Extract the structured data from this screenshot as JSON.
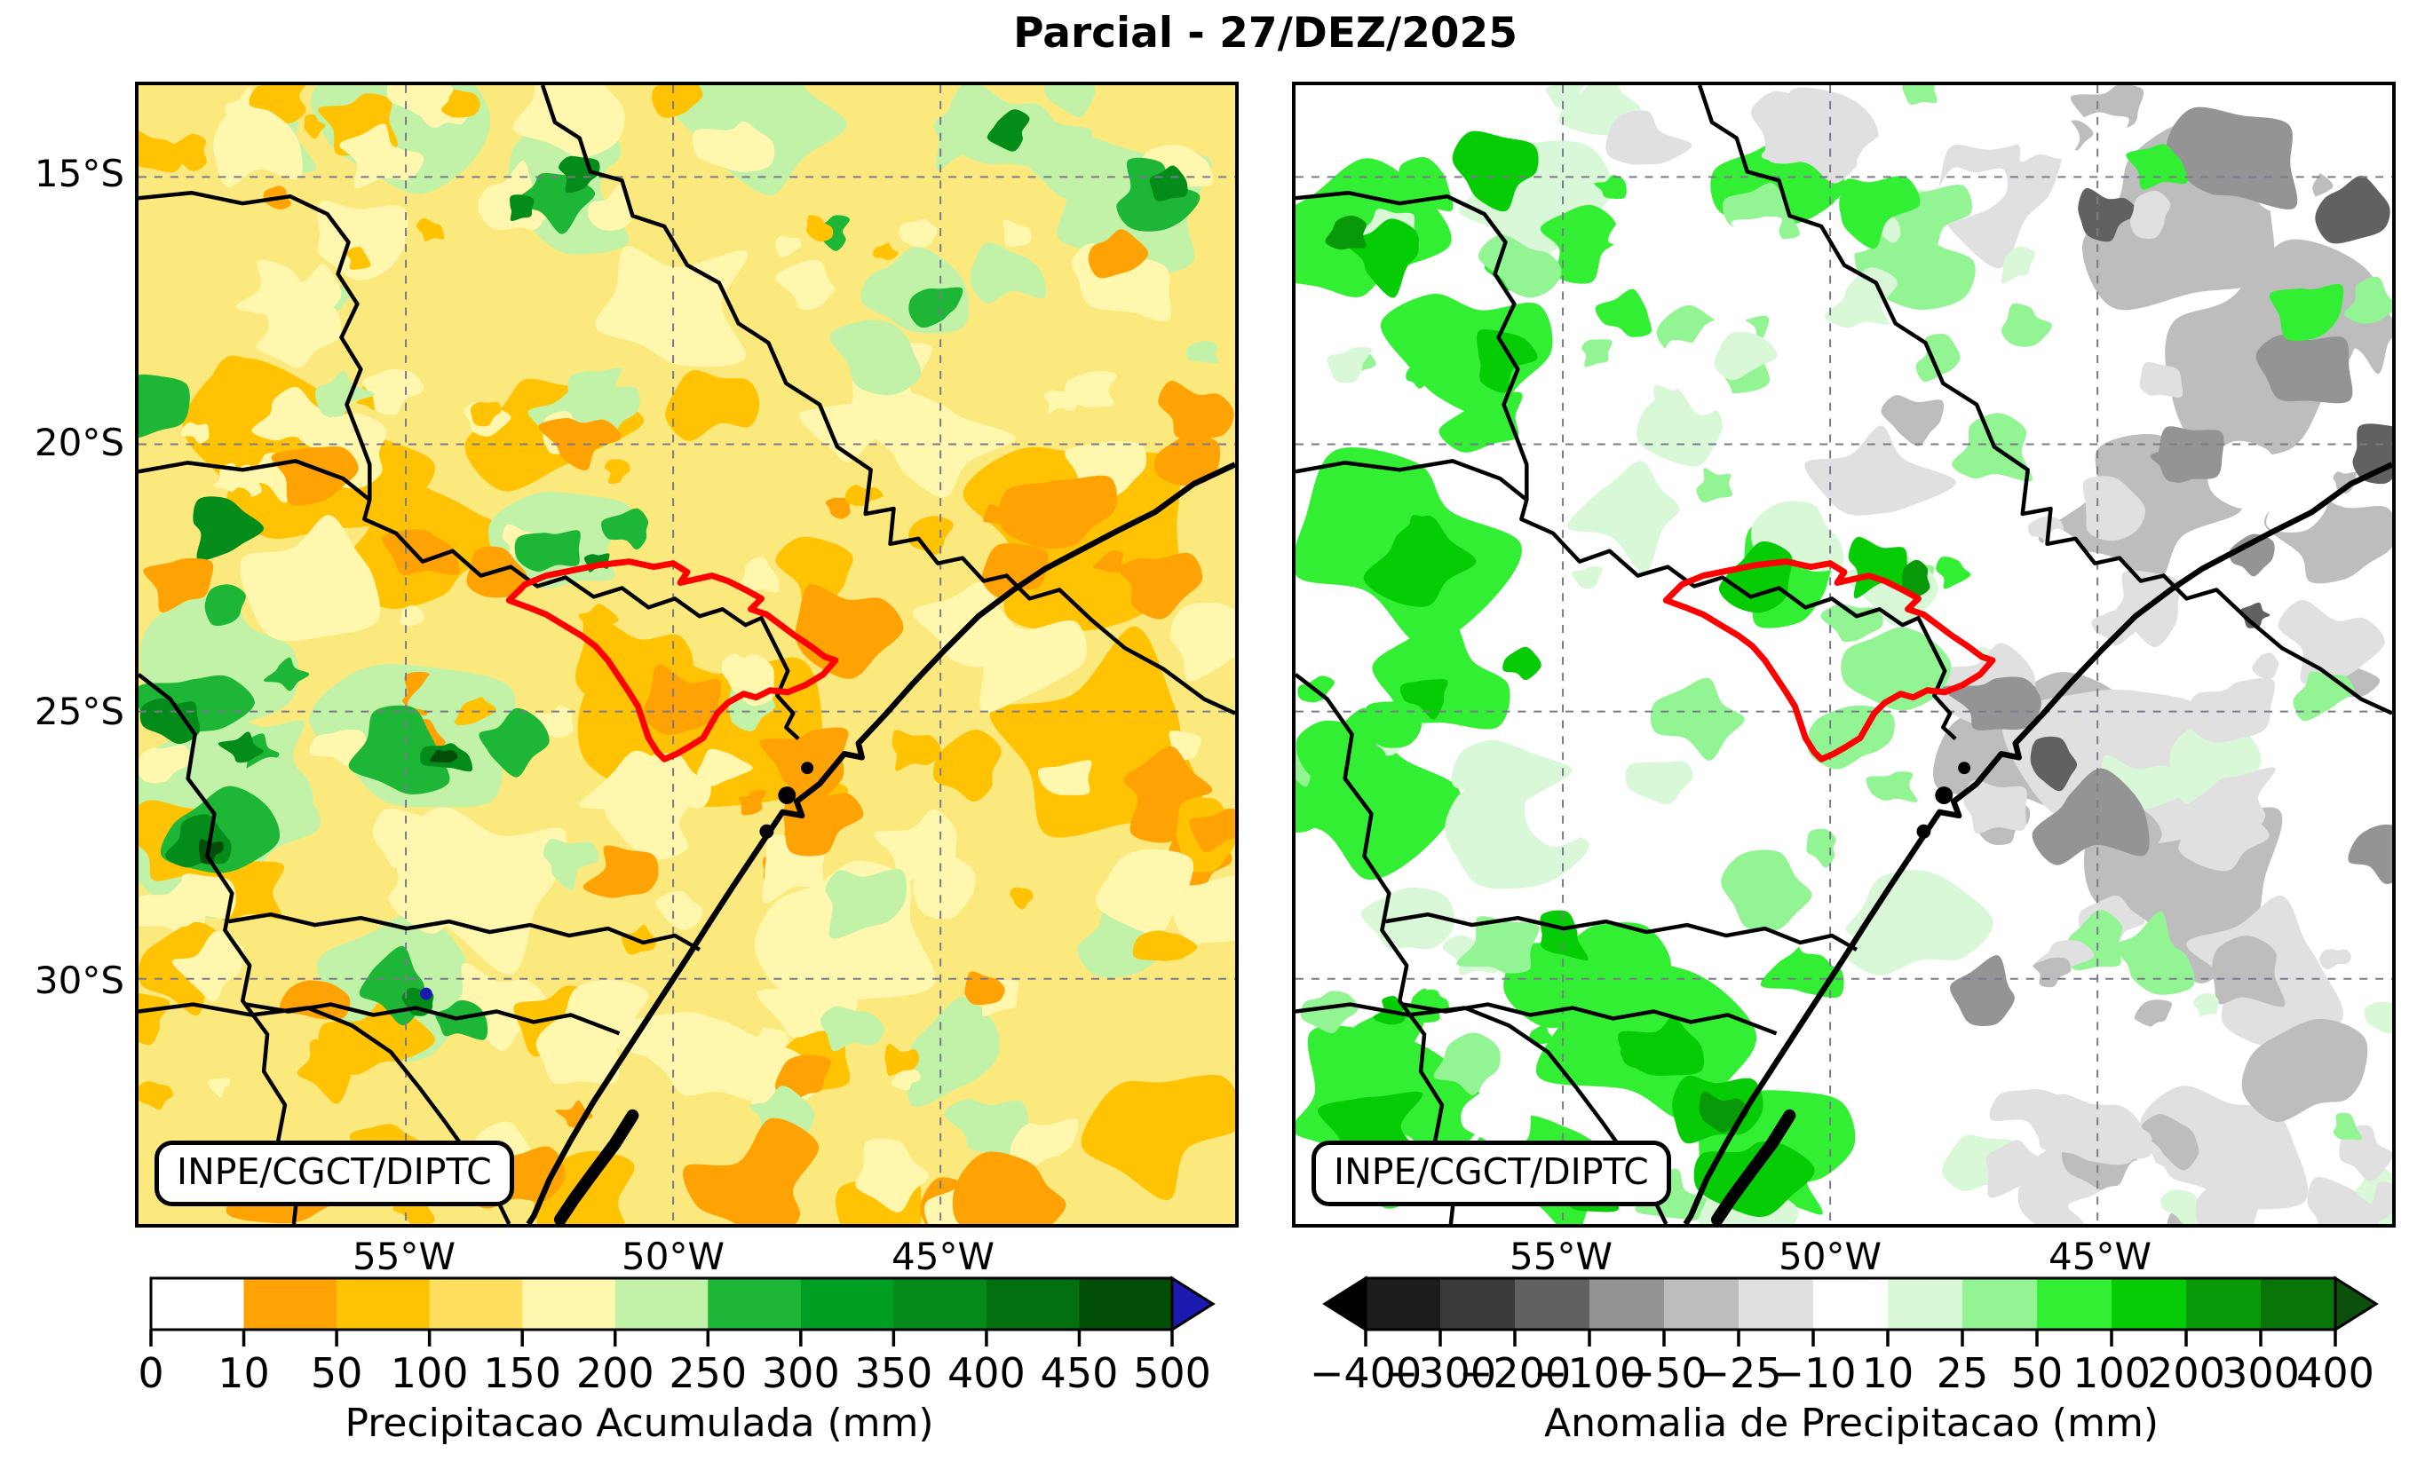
{
  "title": "Parcial - 27/DEZ/2025",
  "credit_label": "INPE/CGCT/DIPTC",
  "region_outline_color": "#ff0000",
  "axes": {
    "lat_ticks": [
      "15°S",
      "20°S",
      "25°S",
      "30°S"
    ],
    "lon_ticks": [
      "55°W",
      "50°W",
      "45°W"
    ]
  },
  "chart_data": [
    {
      "type": "heatmap",
      "panel": "left",
      "colorbar_title": "Precipitacao Acumulada (mm)",
      "levels": [
        0,
        10,
        50,
        100,
        150,
        200,
        250,
        300,
        350,
        400,
        450,
        500
      ],
      "tick_labels": [
        "0",
        "10",
        "50",
        "100",
        "150",
        "200",
        "250",
        "300",
        "350",
        "400",
        "450",
        "500"
      ],
      "segment_colors": [
        "#ffffff",
        "#ffa203",
        "#ffc303",
        "#ffdf60",
        "#fff7ad",
        "#c2f2a7",
        "#1eb637",
        "#009e23",
        "#038c1a",
        "#02700f",
        "#024d08"
      ],
      "overflow_color": "#1b1ab0",
      "lat_ticks": [
        "15°S",
        "20°S",
        "25°S",
        "30°S"
      ],
      "lon_ticks": [
        "55°W",
        "50°W",
        "45°W"
      ]
    },
    {
      "type": "heatmap",
      "panel": "right",
      "colorbar_title": "Anomalia de Precipitacao (mm)",
      "levels": [
        -400,
        -300,
        -200,
        -100,
        -50,
        -25,
        -10,
        10,
        25,
        50,
        100,
        200,
        300,
        400
      ],
      "tick_labels": [
        "−400",
        "−300",
        "−200",
        "−100",
        "−50",
        "−25",
        "−10",
        "10",
        "25",
        "50",
        "100",
        "200",
        "300",
        "400"
      ],
      "segment_colors": [
        "#1c1c1c",
        "#3a3a3a",
        "#616161",
        "#949494",
        "#bdbdbd",
        "#e0e0e0",
        "#ffffff",
        "#d8f8d8",
        "#93f493",
        "#33ef33",
        "#06cc06",
        "#079907",
        "#077507"
      ],
      "underflow_color": "#000000",
      "overflow_color": "#0a4f0a",
      "lon_ticks": [
        "55°W",
        "50°W",
        "45°W"
      ]
    }
  ]
}
